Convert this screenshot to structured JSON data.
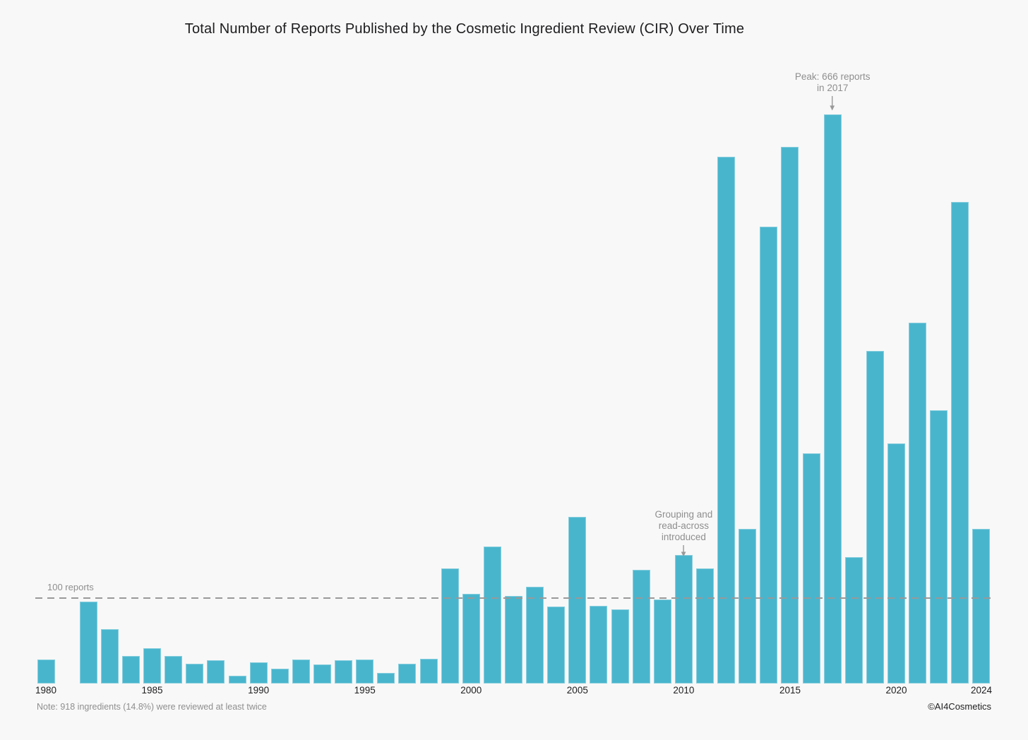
{
  "title": "Total Number of Reports Published by the Cosmetic Ingredient Review (CIR) Over Time",
  "reference_line": {
    "label": "100 reports",
    "value": 100
  },
  "annotations": {
    "peak": {
      "text": "Peak: 666 reports\nin 2017",
      "year": 2017
    },
    "grouping": {
      "text": "Grouping and\nread-across\nintroduced",
      "year": 2010
    }
  },
  "footer": {
    "note": "Note: 918 ingredients (14.8%) were reviewed at least twice",
    "credit": "©AI4Cosmetics"
  },
  "colors": {
    "bar": "#49b5cd",
    "background": "#f8f8f8",
    "reference_line": "#999999",
    "annotation_text": "#8e8e8e",
    "text": "#1d1d1f"
  },
  "chart_data": {
    "type": "bar",
    "title": "Total Number of Reports Published by the Cosmetic Ingredient Review (CIR) Over Time",
    "ylabel": "",
    "xlabel": "",
    "grid": false,
    "legend": false,
    "ylim": [
      0,
      690
    ],
    "x_ticks": [
      1980,
      1985,
      1990,
      1995,
      2000,
      2005,
      2010,
      2015,
      2020,
      2024
    ],
    "years": [
      1980,
      1981,
      1982,
      1983,
      1984,
      1985,
      1986,
      1987,
      1988,
      1989,
      1990,
      1991,
      1992,
      1993,
      1994,
      1995,
      1996,
      1997,
      1998,
      1999,
      2000,
      2001,
      2002,
      2003,
      2004,
      2005,
      2006,
      2007,
      2008,
      2009,
      2010,
      2011,
      2012,
      2013,
      2014,
      2015,
      2016,
      2017,
      2018,
      2019,
      2020,
      2021,
      2022,
      2023,
      2024
    ],
    "values": [
      28,
      0,
      96,
      64,
      32,
      41,
      32,
      23,
      27,
      9,
      25,
      17,
      28,
      22,
      27,
      28,
      12,
      23,
      29,
      135,
      105,
      160,
      102,
      113,
      90,
      195,
      91,
      87,
      133,
      98,
      150,
      135,
      616,
      181,
      534,
      628,
      269,
      666,
      148,
      389,
      281,
      422,
      320,
      563,
      181
    ],
    "reference_line": {
      "label": "100 reports",
      "value": 100
    },
    "annotations": [
      {
        "text": "Peak: 666 reports\nin 2017",
        "target_year": 2017
      },
      {
        "text": "Grouping and\nread-across\nintroduced",
        "target_year": 2010
      }
    ]
  }
}
